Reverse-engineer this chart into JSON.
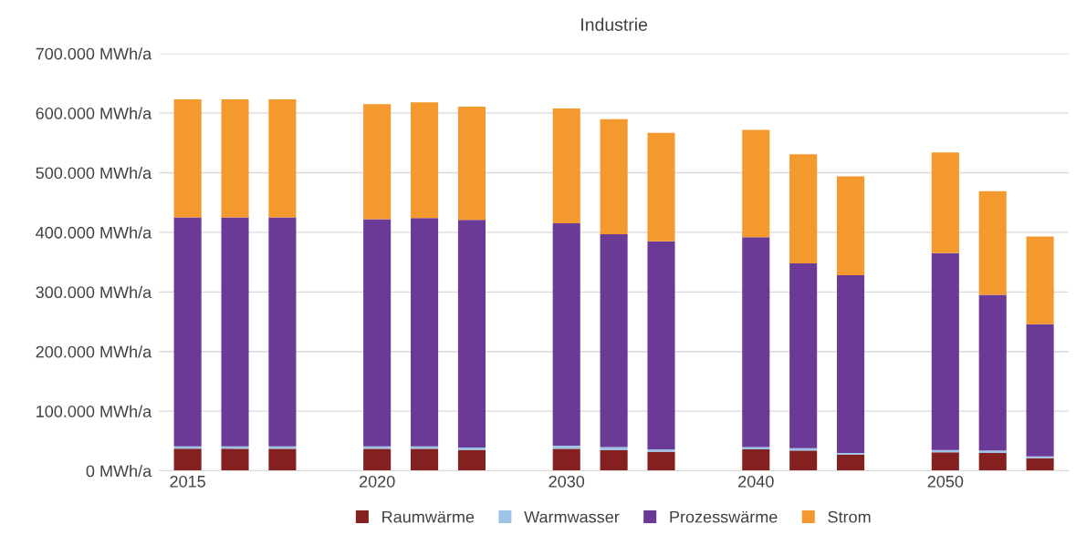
{
  "chart_data": {
    "type": "bar",
    "title": "Industrie",
    "stacked": true,
    "categories": [
      "2015",
      null,
      null,
      null,
      "2020",
      null,
      null,
      null,
      "2030",
      null,
      null,
      null,
      "2040",
      null,
      null,
      null,
      "2050",
      null,
      null
    ],
    "series": [
      {
        "name": "Raumwärme",
        "color": "#852020",
        "values": [
          37000,
          37000,
          37000,
          null,
          37000,
          37000,
          35000,
          null,
          37000,
          35000,
          32000,
          null,
          36000,
          34000,
          27000,
          null,
          31000,
          30000,
          21000
        ]
      },
      {
        "name": "Warmwasser",
        "color": "#9dc3e6",
        "values": [
          4000,
          4000,
          4000,
          null,
          4000,
          4000,
          4000,
          null,
          5000,
          5000,
          4000,
          null,
          4000,
          4000,
          3000,
          null,
          4000,
          4000,
          3000
        ]
      },
      {
        "name": "Prozesswärme",
        "color": "#6b3a96",
        "values": [
          384000,
          384000,
          384000,
          null,
          381000,
          383000,
          382000,
          null,
          373000,
          357000,
          349000,
          null,
          352000,
          310000,
          298000,
          null,
          330000,
          261000,
          222000
        ]
      },
      {
        "name": "Strom",
        "color": "#f4992e",
        "values": [
          198000,
          198000,
          198000,
          null,
          193000,
          194000,
          190000,
          null,
          193000,
          193000,
          182000,
          null,
          180000,
          183000,
          166000,
          null,
          169000,
          174000,
          147000
        ]
      }
    ],
    "ylim": [
      0,
      700000
    ],
    "yticks": [
      {
        "value": 0,
        "label": "0 MWh/a"
      },
      {
        "value": 100000,
        "label": "100.000 MWh/a"
      },
      {
        "value": 200000,
        "label": "200.000 MWh/a"
      },
      {
        "value": 300000,
        "label": "300.000 MWh/a"
      },
      {
        "value": 400000,
        "label": "400.000 MWh/a"
      },
      {
        "value": 500000,
        "label": "500.000 MWh/a"
      },
      {
        "value": 600000,
        "label": "600.000 MWh/a"
      },
      {
        "value": 700000,
        "label": "700.000 MWh/a"
      }
    ],
    "grid": "y",
    "legend": "bottom"
  }
}
